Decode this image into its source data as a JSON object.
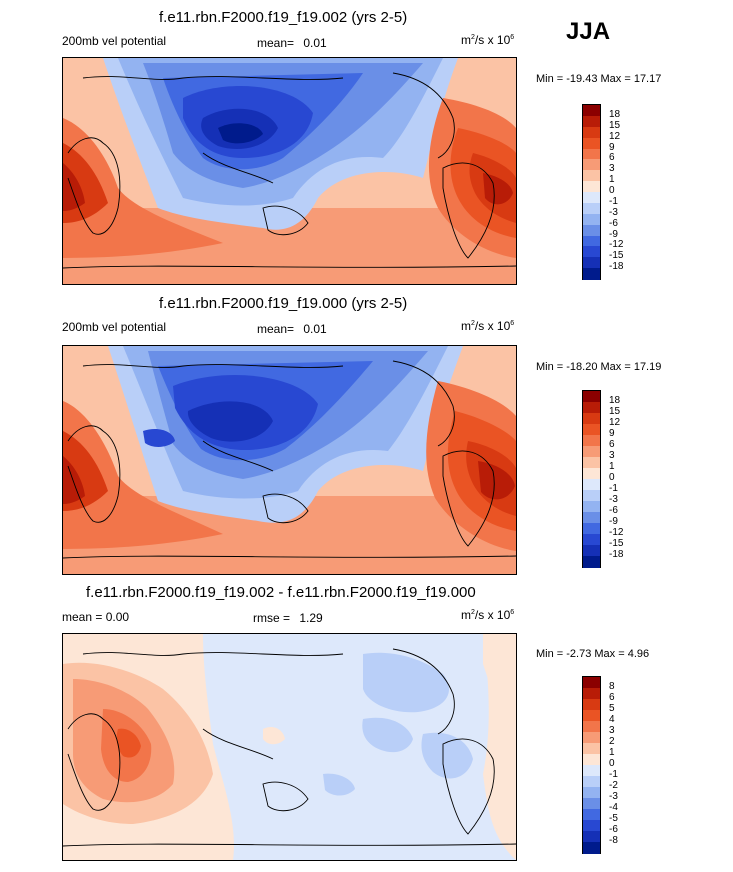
{
  "season": "JJA",
  "panels": [
    {
      "id": "p1",
      "title": "f.e11.rbn.F2000.f19_f19.002 (yrs 2-5)",
      "left_label": "200mb vel potential",
      "center_label": "mean=",
      "center_value": "0.01",
      "units_base": "m",
      "units_exp": "2",
      "units_mid": "/s x 10",
      "units_exp2": "6",
      "minmax": "Min = -19.43 Max =  17.17",
      "colorbar": {
        "labels": [
          "18",
          "15",
          "12",
          "9",
          "6",
          "3",
          "1",
          "0",
          "-1",
          "-3",
          "-6",
          "-9",
          "-12",
          "-15",
          "-18"
        ],
        "colors": [
          "#8b0000",
          "#b81c07",
          "#d83a12",
          "#ea5424",
          "#f2754a",
          "#f79b76",
          "#fbc3a5",
          "#fde6d6",
          "#dde8fb",
          "#b9cff8",
          "#93b3f1",
          "#6a8fe7",
          "#4169e1",
          "#2848d2",
          "#1530b6",
          "#001b8c"
        ]
      }
    },
    {
      "id": "p2",
      "title": "f.e11.rbn.F2000.f19_f19.000 (yrs 2-5)",
      "left_label": "200mb vel potential",
      "center_label": "mean=",
      "center_value": "0.01",
      "units_base": "m",
      "units_exp": "2",
      "units_mid": "/s x 10",
      "units_exp2": "6",
      "minmax": "Min = -18.20 Max =  17.19",
      "colorbar": {
        "labels": [
          "18",
          "15",
          "12",
          "9",
          "6",
          "3",
          "1",
          "0",
          "-1",
          "-3",
          "-6",
          "-9",
          "-12",
          "-15",
          "-18"
        ],
        "colors": [
          "#8b0000",
          "#b81c07",
          "#d83a12",
          "#ea5424",
          "#f2754a",
          "#f79b76",
          "#fbc3a5",
          "#fde6d6",
          "#dde8fb",
          "#b9cff8",
          "#93b3f1",
          "#6a8fe7",
          "#4169e1",
          "#2848d2",
          "#1530b6",
          "#001b8c"
        ]
      }
    },
    {
      "id": "p3",
      "title": "f.e11.rbn.F2000.f19_f19.002 - f.e11.rbn.F2000.f19_f19.000",
      "left_label": "mean =   0.00",
      "center_label": "rmse =",
      "center_value": "1.29",
      "units_base": "m",
      "units_exp": "2",
      "units_mid": "/s x 10",
      "units_exp2": "6",
      "minmax": "Min =  -2.73 Max =   4.96",
      "colorbar": {
        "labels": [
          "8",
          "6",
          "5",
          "4",
          "3",
          "2",
          "1",
          "0",
          "-1",
          "-2",
          "-3",
          "-4",
          "-5",
          "-6",
          "-8"
        ],
        "colors": [
          "#8b0000",
          "#b81c07",
          "#d83a12",
          "#ea5424",
          "#f2754a",
          "#f79b76",
          "#fbc3a5",
          "#fde6d6",
          "#dde8fb",
          "#b9cff8",
          "#93b3f1",
          "#6a8fe7",
          "#4169e1",
          "#2848d2",
          "#1530b6",
          "#001b8c"
        ]
      }
    }
  ]
}
